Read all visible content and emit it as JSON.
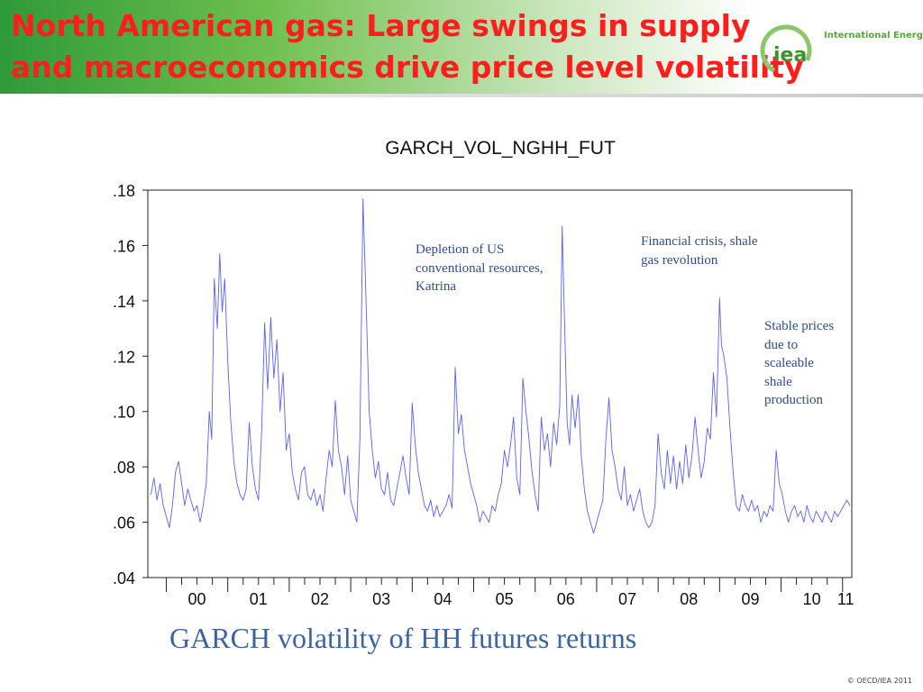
{
  "slide": {
    "title": "North American gas: Large swings in supply and macroeconomics drive price level volatility",
    "logo_name": "International Energy Agency",
    "logo_initials": "iea",
    "caption": "GARCH volatility of HH futures returns",
    "copyright": "© OECD/IEA 2011"
  },
  "colors": {
    "title": "#ff1e1e",
    "header_green": "#2f9a3a",
    "series_line": "#5b62f0",
    "annotation": "#2e4d8a",
    "caption": "#3c64a0"
  },
  "chart_data": {
    "type": "line",
    "title": "GARCH_VOL_NGHH_FUT",
    "xlabel": "",
    "ylabel": "",
    "ylim": [
      0.04,
      0.18
    ],
    "xlim": [
      1999.7,
      2011.15
    ],
    "yticks": [
      ".04",
      ".06",
      ".08",
      ".10",
      ".12",
      ".14",
      ".16",
      ".18"
    ],
    "xticks": [
      {
        "label": "00",
        "value": 2000.5
      },
      {
        "label": "01",
        "value": 2001.5
      },
      {
        "label": "02",
        "value": 2002.5
      },
      {
        "label": "03",
        "value": 2003.5
      },
      {
        "label": "04",
        "value": 2004.5
      },
      {
        "label": "05",
        "value": 2005.5
      },
      {
        "label": "06",
        "value": 2006.5
      },
      {
        "label": "07",
        "value": 2007.5
      },
      {
        "label": "08",
        "value": 2008.5
      },
      {
        "label": "09",
        "value": 2009.5
      },
      {
        "label": "10",
        "value": 2010.5
      },
      {
        "label": "11",
        "value": 2011.05
      }
    ],
    "grid": false,
    "series": [
      {
        "values": [
          [
            1999.75,
            0.07
          ],
          [
            1999.8,
            0.076
          ],
          [
            1999.85,
            0.068
          ],
          [
            1999.9,
            0.074
          ],
          [
            1999.95,
            0.066
          ],
          [
            2000.0,
            0.062
          ],
          [
            2000.05,
            0.058
          ],
          [
            2000.1,
            0.066
          ],
          [
            2000.15,
            0.078
          ],
          [
            2000.2,
            0.082
          ],
          [
            2000.25,
            0.074
          ],
          [
            2000.3,
            0.066
          ],
          [
            2000.35,
            0.072
          ],
          [
            2000.4,
            0.068
          ],
          [
            2000.45,
            0.064
          ],
          [
            2000.5,
            0.066
          ],
          [
            2000.55,
            0.06
          ],
          [
            2000.6,
            0.066
          ],
          [
            2000.65,
            0.074
          ],
          [
            2000.7,
            0.1
          ],
          [
            2000.74,
            0.09
          ],
          [
            2000.78,
            0.148
          ],
          [
            2000.83,
            0.13
          ],
          [
            2000.87,
            0.157
          ],
          [
            2000.91,
            0.136
          ],
          [
            2000.95,
            0.148
          ],
          [
            2001.0,
            0.118
          ],
          [
            2001.05,
            0.096
          ],
          [
            2001.1,
            0.082
          ],
          [
            2001.15,
            0.074
          ],
          [
            2001.2,
            0.07
          ],
          [
            2001.25,
            0.068
          ],
          [
            2001.3,
            0.072
          ],
          [
            2001.35,
            0.096
          ],
          [
            2001.4,
            0.08
          ],
          [
            2001.45,
            0.072
          ],
          [
            2001.5,
            0.068
          ],
          [
            2001.55,
            0.092
          ],
          [
            2001.6,
            0.132
          ],
          [
            2001.65,
            0.108
          ],
          [
            2001.7,
            0.134
          ],
          [
            2001.75,
            0.112
          ],
          [
            2001.8,
            0.126
          ],
          [
            2001.85,
            0.1
          ],
          [
            2001.9,
            0.114
          ],
          [
            2001.95,
            0.086
          ],
          [
            2002.0,
            0.092
          ],
          [
            2002.05,
            0.078
          ],
          [
            2002.1,
            0.072
          ],
          [
            2002.15,
            0.068
          ],
          [
            2002.2,
            0.078
          ],
          [
            2002.25,
            0.08
          ],
          [
            2002.3,
            0.07
          ],
          [
            2002.35,
            0.068
          ],
          [
            2002.4,
            0.072
          ],
          [
            2002.45,
            0.066
          ],
          [
            2002.5,
            0.07
          ],
          [
            2002.55,
            0.064
          ],
          [
            2002.6,
            0.076
          ],
          [
            2002.65,
            0.086
          ],
          [
            2002.7,
            0.08
          ],
          [
            2002.75,
            0.104
          ],
          [
            2002.8,
            0.086
          ],
          [
            2002.85,
            0.08
          ],
          [
            2002.9,
            0.07
          ],
          [
            2002.95,
            0.084
          ],
          [
            2003.0,
            0.068
          ],
          [
            2003.05,
            0.064
          ],
          [
            2003.1,
            0.06
          ],
          [
            2003.15,
            0.09
          ],
          [
            2003.2,
            0.177
          ],
          [
            2003.25,
            0.14
          ],
          [
            2003.3,
            0.1
          ],
          [
            2003.35,
            0.086
          ],
          [
            2003.4,
            0.076
          ],
          [
            2003.45,
            0.082
          ],
          [
            2003.5,
            0.072
          ],
          [
            2003.55,
            0.07
          ],
          [
            2003.6,
            0.078
          ],
          [
            2003.65,
            0.068
          ],
          [
            2003.7,
            0.066
          ],
          [
            2003.75,
            0.072
          ],
          [
            2003.8,
            0.078
          ],
          [
            2003.85,
            0.084
          ],
          [
            2003.9,
            0.076
          ],
          [
            2003.95,
            0.07
          ],
          [
            2004.0,
            0.103
          ],
          [
            2004.05,
            0.088
          ],
          [
            2004.1,
            0.078
          ],
          [
            2004.15,
            0.072
          ],
          [
            2004.2,
            0.066
          ],
          [
            2004.25,
            0.064
          ],
          [
            2004.3,
            0.068
          ],
          [
            2004.35,
            0.062
          ],
          [
            2004.4,
            0.066
          ],
          [
            2004.45,
            0.062
          ],
          [
            2004.5,
            0.064
          ],
          [
            2004.55,
            0.066
          ],
          [
            2004.6,
            0.07
          ],
          [
            2004.65,
            0.065
          ],
          [
            2004.7,
            0.116
          ],
          [
            2004.75,
            0.092
          ],
          [
            2004.8,
            0.099
          ],
          [
            2004.85,
            0.086
          ],
          [
            2004.9,
            0.08
          ],
          [
            2004.95,
            0.074
          ],
          [
            2005.0,
            0.07
          ],
          [
            2005.05,
            0.066
          ],
          [
            2005.1,
            0.06
          ],
          [
            2005.15,
            0.064
          ],
          [
            2005.2,
            0.062
          ],
          [
            2005.25,
            0.06
          ],
          [
            2005.3,
            0.066
          ],
          [
            2005.35,
            0.064
          ],
          [
            2005.4,
            0.07
          ],
          [
            2005.45,
            0.074
          ],
          [
            2005.5,
            0.086
          ],
          [
            2005.55,
            0.08
          ],
          [
            2005.6,
            0.088
          ],
          [
            2005.65,
            0.098
          ],
          [
            2005.7,
            0.076
          ],
          [
            2005.75,
            0.07
          ],
          [
            2005.8,
            0.112
          ],
          [
            2005.85,
            0.1
          ],
          [
            2005.9,
            0.09
          ],
          [
            2005.95,
            0.078
          ],
          [
            2006.0,
            0.07
          ],
          [
            2006.05,
            0.064
          ],
          [
            2006.1,
            0.098
          ],
          [
            2006.15,
            0.086
          ],
          [
            2006.2,
            0.092
          ],
          [
            2006.25,
            0.08
          ],
          [
            2006.3,
            0.096
          ],
          [
            2006.35,
            0.088
          ],
          [
            2006.4,
            0.102
          ],
          [
            2006.44,
            0.167
          ],
          [
            2006.48,
            0.13
          ],
          [
            2006.52,
            0.096
          ],
          [
            2006.56,
            0.088
          ],
          [
            2006.6,
            0.106
          ],
          [
            2006.65,
            0.094
          ],
          [
            2006.7,
            0.106
          ],
          [
            2006.75,
            0.084
          ],
          [
            2006.8,
            0.072
          ],
          [
            2006.85,
            0.064
          ],
          [
            2006.9,
            0.06
          ],
          [
            2006.95,
            0.056
          ],
          [
            2007.0,
            0.06
          ],
          [
            2007.05,
            0.064
          ],
          [
            2007.1,
            0.068
          ],
          [
            2007.15,
            0.09
          ],
          [
            2007.2,
            0.105
          ],
          [
            2007.25,
            0.086
          ],
          [
            2007.3,
            0.08
          ],
          [
            2007.35,
            0.072
          ],
          [
            2007.4,
            0.068
          ],
          [
            2007.45,
            0.08
          ],
          [
            2007.5,
            0.066
          ],
          [
            2007.55,
            0.07
          ],
          [
            2007.6,
            0.064
          ],
          [
            2007.65,
            0.068
          ],
          [
            2007.7,
            0.072
          ],
          [
            2007.75,
            0.064
          ],
          [
            2007.8,
            0.06
          ],
          [
            2007.85,
            0.058
          ],
          [
            2007.9,
            0.06
          ],
          [
            2007.95,
            0.066
          ],
          [
            2008.0,
            0.092
          ],
          [
            2008.05,
            0.078
          ],
          [
            2008.1,
            0.072
          ],
          [
            2008.15,
            0.086
          ],
          [
            2008.2,
            0.074
          ],
          [
            2008.25,
            0.084
          ],
          [
            2008.3,
            0.072
          ],
          [
            2008.35,
            0.082
          ],
          [
            2008.4,
            0.074
          ],
          [
            2008.45,
            0.088
          ],
          [
            2008.5,
            0.076
          ],
          [
            2008.55,
            0.084
          ],
          [
            2008.6,
            0.098
          ],
          [
            2008.65,
            0.086
          ],
          [
            2008.7,
            0.076
          ],
          [
            2008.75,
            0.082
          ],
          [
            2008.8,
            0.094
          ],
          [
            2008.85,
            0.09
          ],
          [
            2008.9,
            0.114
          ],
          [
            2008.95,
            0.098
          ],
          [
            2009.0,
            0.141
          ],
          [
            2009.03,
            0.124
          ],
          [
            2009.07,
            0.12
          ],
          [
            2009.12,
            0.112
          ],
          [
            2009.17,
            0.094
          ],
          [
            2009.22,
            0.078
          ],
          [
            2009.27,
            0.066
          ],
          [
            2009.32,
            0.064
          ],
          [
            2009.37,
            0.07
          ],
          [
            2009.42,
            0.066
          ],
          [
            2009.47,
            0.064
          ],
          [
            2009.52,
            0.068
          ],
          [
            2009.57,
            0.064
          ],
          [
            2009.62,
            0.066
          ],
          [
            2009.67,
            0.06
          ],
          [
            2009.72,
            0.064
          ],
          [
            2009.77,
            0.062
          ],
          [
            2009.82,
            0.066
          ],
          [
            2009.87,
            0.064
          ],
          [
            2009.92,
            0.086
          ],
          [
            2009.97,
            0.074
          ],
          [
            2010.02,
            0.07
          ],
          [
            2010.07,
            0.064
          ],
          [
            2010.12,
            0.06
          ],
          [
            2010.17,
            0.064
          ],
          [
            2010.22,
            0.066
          ],
          [
            2010.27,
            0.062
          ],
          [
            2010.32,
            0.064
          ],
          [
            2010.37,
            0.06
          ],
          [
            2010.42,
            0.066
          ],
          [
            2010.47,
            0.062
          ],
          [
            2010.52,
            0.06
          ],
          [
            2010.57,
            0.064
          ],
          [
            2010.62,
            0.062
          ],
          [
            2010.67,
            0.06
          ],
          [
            2010.72,
            0.064
          ],
          [
            2010.77,
            0.062
          ],
          [
            2010.82,
            0.06
          ],
          [
            2010.87,
            0.064
          ],
          [
            2010.92,
            0.062
          ],
          [
            2010.97,
            0.064
          ],
          [
            2011.02,
            0.066
          ],
          [
            2011.07,
            0.068
          ],
          [
            2011.12,
            0.066
          ]
        ]
      }
    ],
    "annotations": [
      "Depletion of US\nconventional resources,\nKatrina",
      "Financial crisis, shale\ngas revolution",
      "Stable prices\ndue to\nscaleable\nshale\nproduction"
    ]
  }
}
